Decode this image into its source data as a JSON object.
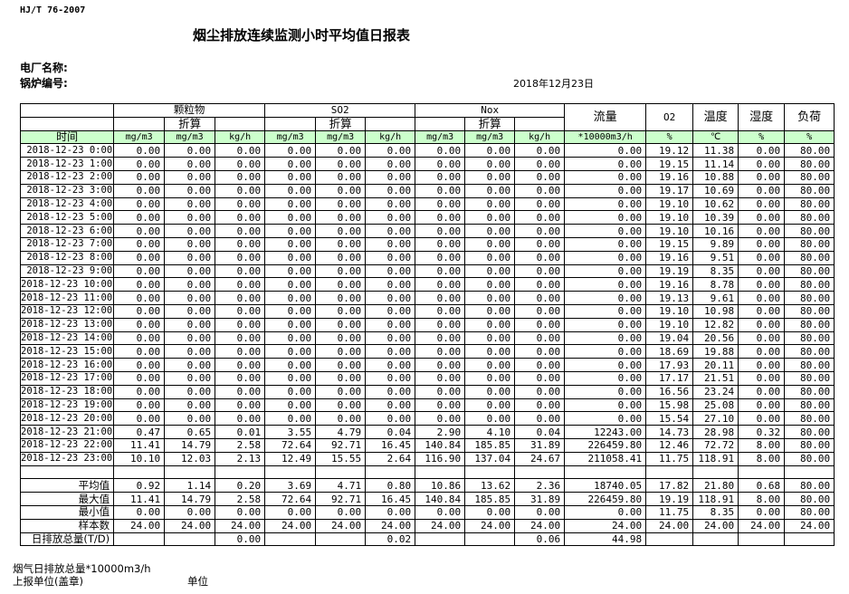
{
  "header": {
    "standard": "HJ/T  76-2007",
    "title": "烟尘排放连续监测小时平均值日报表",
    "plant_label": "电厂名称:",
    "boiler_label": "锅炉编号:",
    "date": "2018年12月23日"
  },
  "table": {
    "groups": {
      "particulate": "颗粒物",
      "so2": "SO2",
      "nox": "Nox",
      "flow": "流量",
      "o2": "O2",
      "temp": "温度",
      "humidity": "湿度",
      "load": "负荷"
    },
    "converted": "折算",
    "time_header": "时间",
    "units": [
      "mg/m3",
      "mg/m3",
      "kg/h",
      "mg/m3",
      "mg/m3",
      "kg/h",
      "mg/m3",
      "mg/m3",
      "kg/h",
      "*10000m3/h",
      "%",
      "℃",
      "%",
      "%"
    ],
    "rows": [
      [
        "2018-12-23 0:00",
        "0.00",
        "0.00",
        "0.00",
        "0.00",
        "0.00",
        "0.00",
        "0.00",
        "0.00",
        "0.00",
        "0.00",
        "19.12",
        "11.38",
        "0.00",
        "80.00"
      ],
      [
        "2018-12-23 1:00",
        "0.00",
        "0.00",
        "0.00",
        "0.00",
        "0.00",
        "0.00",
        "0.00",
        "0.00",
        "0.00",
        "0.00",
        "19.15",
        "11.14",
        "0.00",
        "80.00"
      ],
      [
        "2018-12-23 2:00",
        "0.00",
        "0.00",
        "0.00",
        "0.00",
        "0.00",
        "0.00",
        "0.00",
        "0.00",
        "0.00",
        "0.00",
        "19.16",
        "10.88",
        "0.00",
        "80.00"
      ],
      [
        "2018-12-23 3:00",
        "0.00",
        "0.00",
        "0.00",
        "0.00",
        "0.00",
        "0.00",
        "0.00",
        "0.00",
        "0.00",
        "0.00",
        "19.17",
        "10.69",
        "0.00",
        "80.00"
      ],
      [
        "2018-12-23 4:00",
        "0.00",
        "0.00",
        "0.00",
        "0.00",
        "0.00",
        "0.00",
        "0.00",
        "0.00",
        "0.00",
        "0.00",
        "19.10",
        "10.62",
        "0.00",
        "80.00"
      ],
      [
        "2018-12-23 5:00",
        "0.00",
        "0.00",
        "0.00",
        "0.00",
        "0.00",
        "0.00",
        "0.00",
        "0.00",
        "0.00",
        "0.00",
        "19.10",
        "10.39",
        "0.00",
        "80.00"
      ],
      [
        "2018-12-23 6:00",
        "0.00",
        "0.00",
        "0.00",
        "0.00",
        "0.00",
        "0.00",
        "0.00",
        "0.00",
        "0.00",
        "0.00",
        "19.10",
        "10.16",
        "0.00",
        "80.00"
      ],
      [
        "2018-12-23 7:00",
        "0.00",
        "0.00",
        "0.00",
        "0.00",
        "0.00",
        "0.00",
        "0.00",
        "0.00",
        "0.00",
        "0.00",
        "19.15",
        "9.89",
        "0.00",
        "80.00"
      ],
      [
        "2018-12-23 8:00",
        "0.00",
        "0.00",
        "0.00",
        "0.00",
        "0.00",
        "0.00",
        "0.00",
        "0.00",
        "0.00",
        "0.00",
        "19.16",
        "9.51",
        "0.00",
        "80.00"
      ],
      [
        "2018-12-23 9:00",
        "0.00",
        "0.00",
        "0.00",
        "0.00",
        "0.00",
        "0.00",
        "0.00",
        "0.00",
        "0.00",
        "0.00",
        "19.19",
        "8.35",
        "0.00",
        "80.00"
      ],
      [
        "2018-12-23 10:00",
        "0.00",
        "0.00",
        "0.00",
        "0.00",
        "0.00",
        "0.00",
        "0.00",
        "0.00",
        "0.00",
        "0.00",
        "19.16",
        "8.78",
        "0.00",
        "80.00"
      ],
      [
        "2018-12-23 11:00",
        "0.00",
        "0.00",
        "0.00",
        "0.00",
        "0.00",
        "0.00",
        "0.00",
        "0.00",
        "0.00",
        "0.00",
        "19.13",
        "9.61",
        "0.00",
        "80.00"
      ],
      [
        "2018-12-23 12:00",
        "0.00",
        "0.00",
        "0.00",
        "0.00",
        "0.00",
        "0.00",
        "0.00",
        "0.00",
        "0.00",
        "0.00",
        "19.10",
        "10.98",
        "0.00",
        "80.00"
      ],
      [
        "2018-12-23 13:00",
        "0.00",
        "0.00",
        "0.00",
        "0.00",
        "0.00",
        "0.00",
        "0.00",
        "0.00",
        "0.00",
        "0.00",
        "19.10",
        "12.82",
        "0.00",
        "80.00"
      ],
      [
        "2018-12-23 14:00",
        "0.00",
        "0.00",
        "0.00",
        "0.00",
        "0.00",
        "0.00",
        "0.00",
        "0.00",
        "0.00",
        "0.00",
        "19.04",
        "20.56",
        "0.00",
        "80.00"
      ],
      [
        "2018-12-23 15:00",
        "0.00",
        "0.00",
        "0.00",
        "0.00",
        "0.00",
        "0.00",
        "0.00",
        "0.00",
        "0.00",
        "0.00",
        "18.69",
        "19.88",
        "0.00",
        "80.00"
      ],
      [
        "2018-12-23 16:00",
        "0.00",
        "0.00",
        "0.00",
        "0.00",
        "0.00",
        "0.00",
        "0.00",
        "0.00",
        "0.00",
        "0.00",
        "17.93",
        "20.11",
        "0.00",
        "80.00"
      ],
      [
        "2018-12-23 17:00",
        "0.00",
        "0.00",
        "0.00",
        "0.00",
        "0.00",
        "0.00",
        "0.00",
        "0.00",
        "0.00",
        "0.00",
        "17.17",
        "21.51",
        "0.00",
        "80.00"
      ],
      [
        "2018-12-23 18:00",
        "0.00",
        "0.00",
        "0.00",
        "0.00",
        "0.00",
        "0.00",
        "0.00",
        "0.00",
        "0.00",
        "0.00",
        "16.56",
        "23.24",
        "0.00",
        "80.00"
      ],
      [
        "2018-12-23 19:00",
        "0.00",
        "0.00",
        "0.00",
        "0.00",
        "0.00",
        "0.00",
        "0.00",
        "0.00",
        "0.00",
        "0.00",
        "15.98",
        "25.08",
        "0.00",
        "80.00"
      ],
      [
        "2018-12-23 20:00",
        "0.00",
        "0.00",
        "0.00",
        "0.00",
        "0.00",
        "0.00",
        "0.00",
        "0.00",
        "0.00",
        "0.00",
        "15.54",
        "27.10",
        "0.00",
        "80.00"
      ],
      [
        "2018-12-23 21:00",
        "0.47",
        "0.65",
        "0.01",
        "3.55",
        "4.79",
        "0.04",
        "2.90",
        "4.10",
        "0.04",
        "12243.00",
        "14.73",
        "28.98",
        "0.32",
        "80.00"
      ],
      [
        "2018-12-23 22:00",
        "11.41",
        "14.79",
        "2.58",
        "72.64",
        "92.71",
        "16.45",
        "140.84",
        "185.85",
        "31.89",
        "226459.80",
        "12.46",
        "72.72",
        "8.00",
        "80.00"
      ],
      [
        "2018-12-23 23:00",
        "10.10",
        "12.03",
        "2.13",
        "12.49",
        "15.55",
        "2.64",
        "116.90",
        "137.04",
        "24.67",
        "211058.41",
        "11.75",
        "118.91",
        "8.00",
        "80.00"
      ]
    ],
    "summary": [
      [
        "平均值",
        "0.92",
        "1.14",
        "0.20",
        "3.69",
        "4.71",
        "0.80",
        "10.86",
        "13.62",
        "2.36",
        "18740.05",
        "17.82",
        "21.80",
        "0.68",
        "80.00"
      ],
      [
        "最大值",
        "11.41",
        "14.79",
        "2.58",
        "72.64",
        "92.71",
        "16.45",
        "140.84",
        "185.85",
        "31.89",
        "226459.80",
        "19.19",
        "118.91",
        "8.00",
        "80.00"
      ],
      [
        "最小值",
        "0.00",
        "0.00",
        "0.00",
        "0.00",
        "0.00",
        "0.00",
        "0.00",
        "0.00",
        "0.00",
        "0.00",
        "11.75",
        "8.35",
        "0.00",
        "80.00"
      ],
      [
        "样本数",
        "24.00",
        "24.00",
        "24.00",
        "24.00",
        "24.00",
        "24.00",
        "24.00",
        "24.00",
        "24.00",
        "24.00",
        "24.00",
        "24.00",
        "24.00",
        "24.00"
      ],
      [
        "日排放总量(T/D)",
        "",
        "",
        "0.00",
        "",
        "",
        "0.02",
        "",
        "",
        "0.06",
        "44.98",
        "",
        "",
        "",
        ""
      ]
    ]
  },
  "footer": {
    "flue_gas_total": "烟气日排放总量*10000m3/h",
    "reporting_unit": "上报单位(盖章)",
    "unit": "单位"
  }
}
